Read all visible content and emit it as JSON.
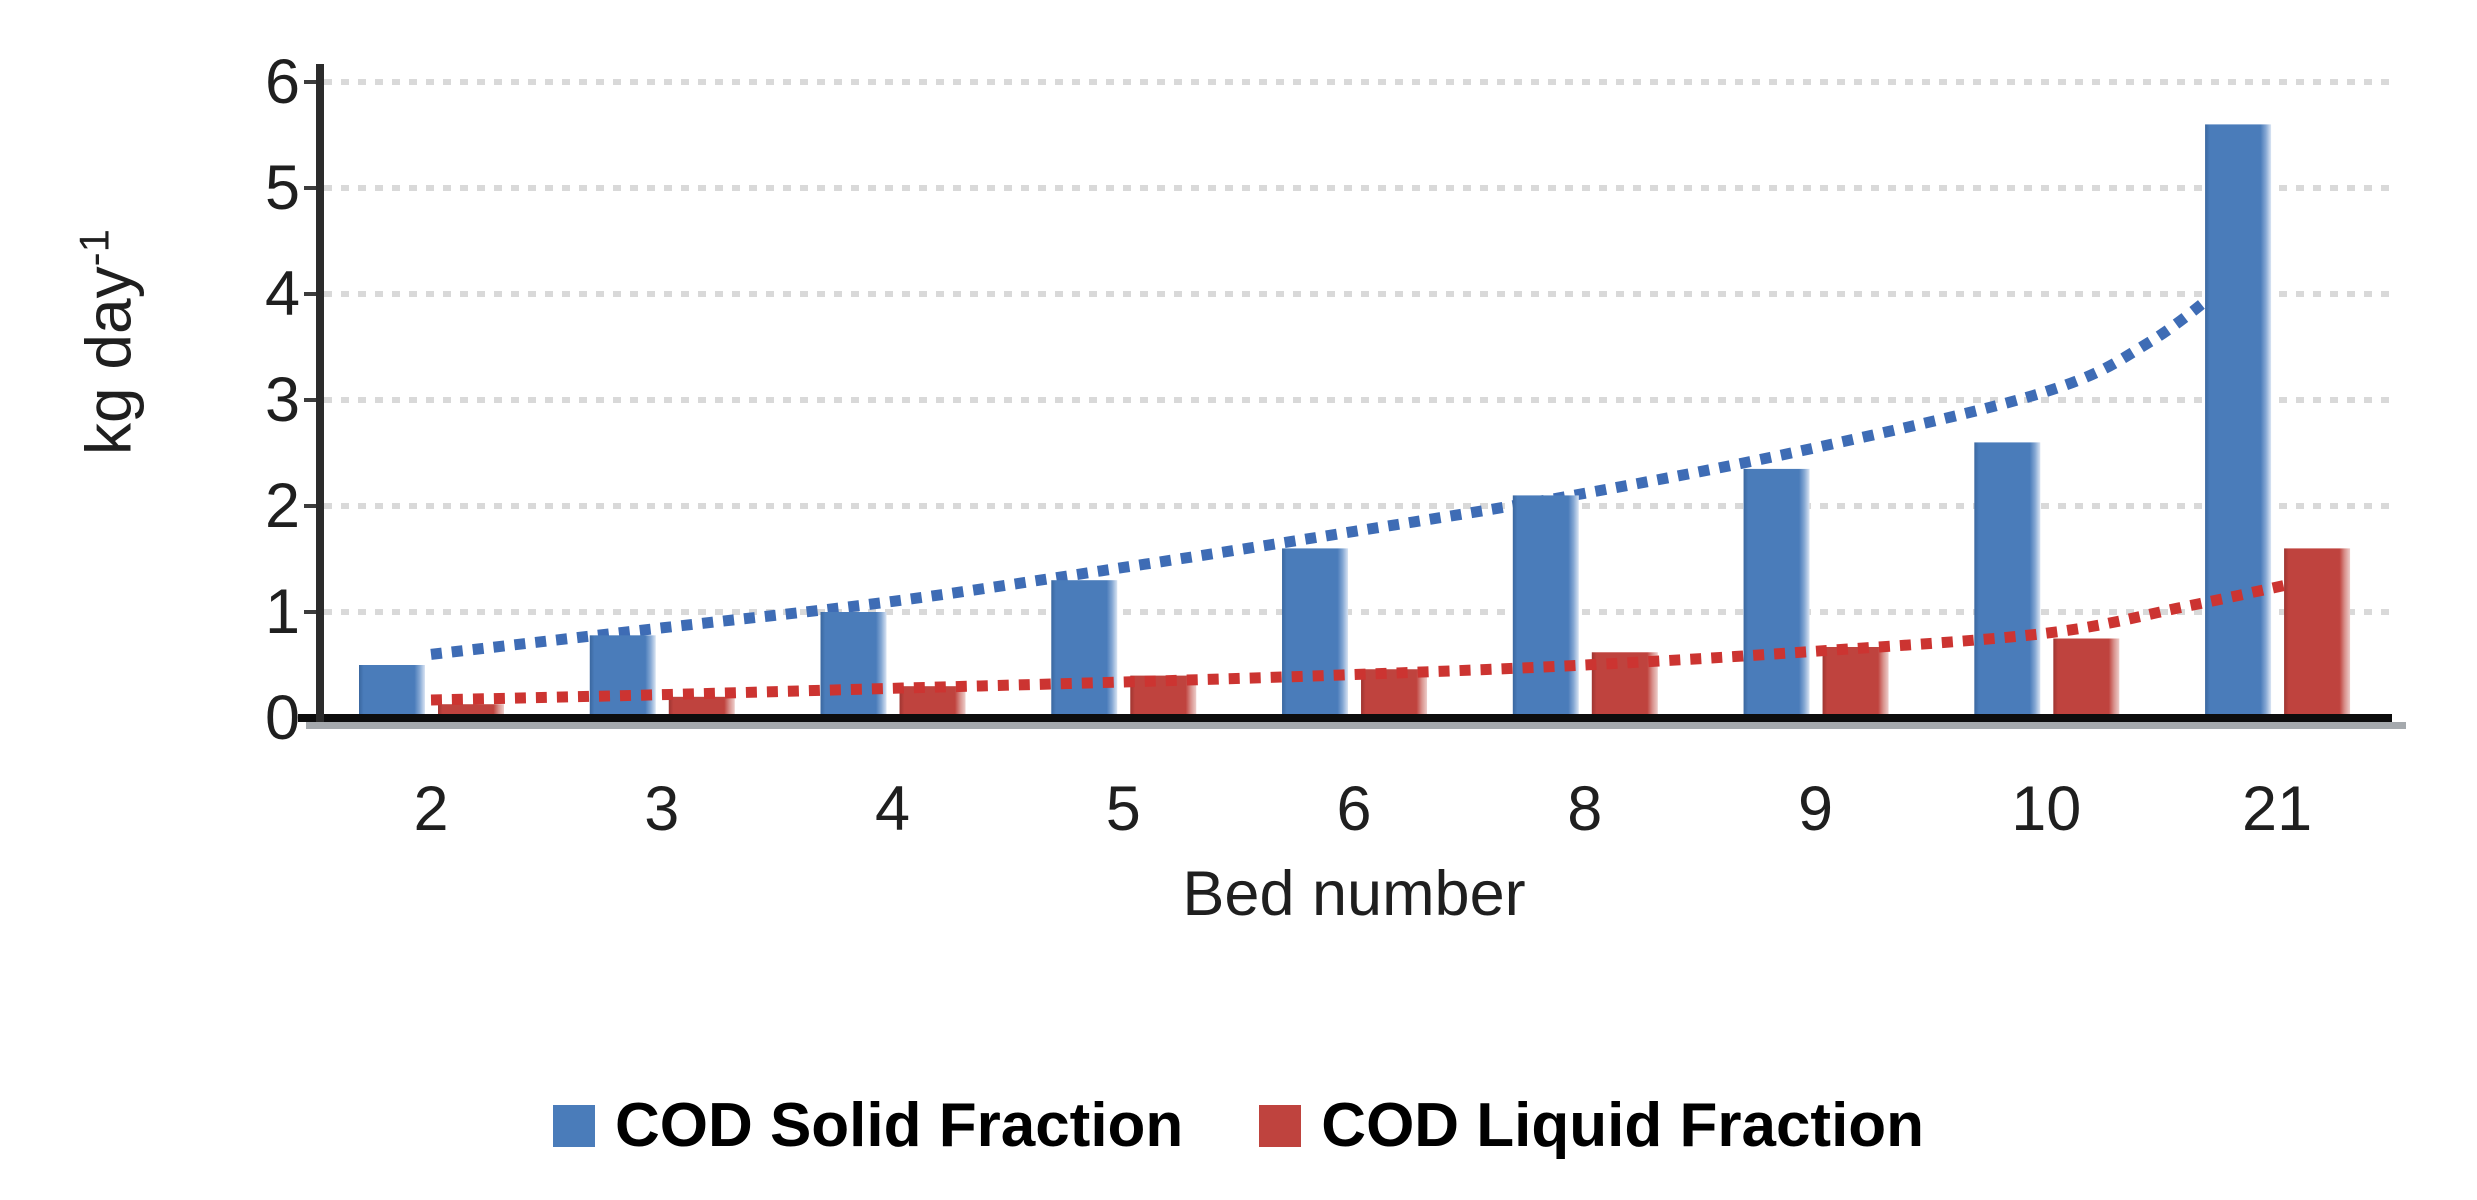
{
  "chart_data": {
    "type": "bar",
    "title": "",
    "categories": [
      "2",
      "3",
      "4",
      "5",
      "6",
      "8",
      "9",
      "10",
      "21"
    ],
    "series": [
      {
        "name": "COD Solid Fraction",
        "color": "#4a7cba",
        "values": [
          0.5,
          0.78,
          1.0,
          1.3,
          1.6,
          2.1,
          2.35,
          2.6,
          5.6
        ],
        "trendline": {
          "style": "dotted",
          "color": "#3e6cb5",
          "points": [
            [
              0,
              0.6
            ],
            [
              1,
              0.85
            ],
            [
              2,
              1.1
            ],
            [
              3,
              1.42
            ],
            [
              4,
              1.76
            ],
            [
              5,
              2.12
            ],
            [
              6,
              2.55
            ],
            [
              7,
              3.08
            ],
            [
              7.45,
              3.55
            ],
            [
              7.83,
              4.18
            ]
          ]
        }
      },
      {
        "name": "COD Liquid Fraction",
        "color": "#bf433e",
        "values": [
          0.13,
          0.2,
          0.3,
          0.4,
          0.46,
          0.62,
          0.67,
          0.75,
          1.6
        ],
        "trendline": {
          "style": "dotted",
          "color": "#cc3431",
          "points": [
            [
              0,
              0.17
            ],
            [
              1,
              0.22
            ],
            [
              2,
              0.28
            ],
            [
              3,
              0.34
            ],
            [
              4,
              0.41
            ],
            [
              5,
              0.5
            ],
            [
              6,
              0.63
            ],
            [
              7,
              0.8
            ],
            [
              7.6,
              1.05
            ],
            [
              8.03,
              1.25
            ]
          ]
        }
      }
    ],
    "xlabel": "Bed number",
    "ylabel": "kg day",
    "ylabel_superscript": "-1",
    "ylim": [
      0,
      6
    ],
    "yticks": [
      0,
      1,
      2,
      3,
      4,
      5,
      6
    ],
    "grid": "horizontal-dotted",
    "legend_position": "bottom",
    "axis_color": "#0d0d0d",
    "axis_shadow_color": "#8e9398",
    "gridline_color": "#d9d9d9",
    "text_color": "#1f1f1f"
  }
}
